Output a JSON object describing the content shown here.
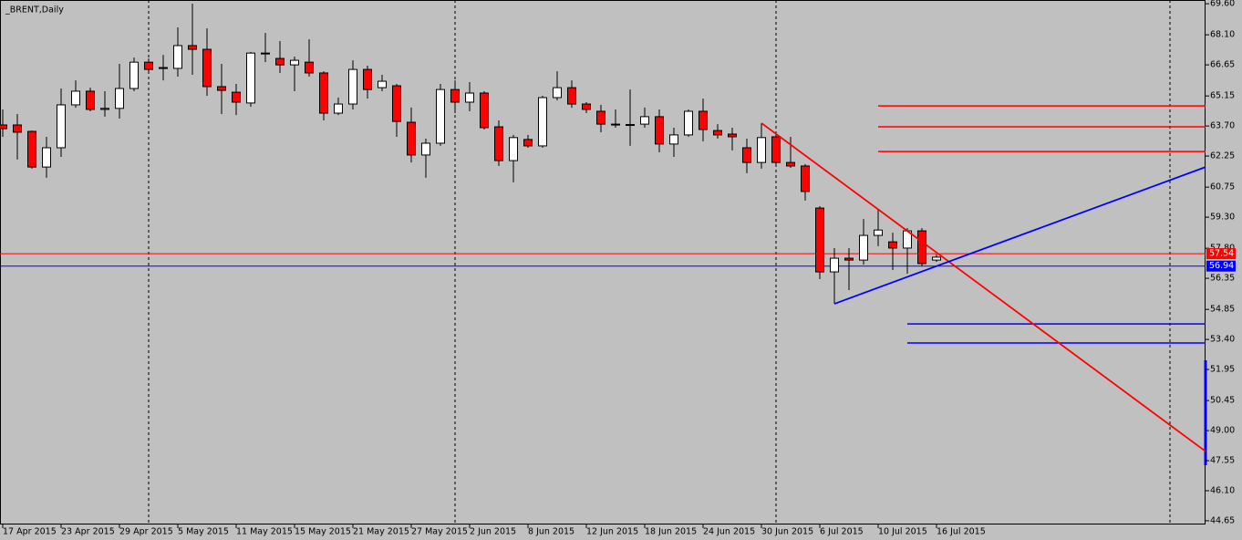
{
  "chart_data": {
    "type": "candlestick",
    "title": "_BRENT,Daily",
    "categories": [
      "17 Apr 2015",
      null,
      null,
      null,
      "23 Apr 2015",
      null,
      null,
      null,
      "29 Apr 2015",
      null,
      null,
      null,
      "5 May 2015",
      null,
      null,
      null,
      "11 May 2015",
      null,
      null,
      null,
      "15 May 2015",
      null,
      null,
      null,
      "21 May 2015",
      null,
      null,
      null,
      "27 May 2015",
      null,
      null,
      null,
      "2 Jun 2015",
      null,
      null,
      null,
      "8 Jun 2015",
      null,
      null,
      null,
      "12 Jun 2015",
      null,
      null,
      null,
      "18 Jun 2015",
      null,
      null,
      null,
      "24 Jun 2015",
      null,
      null,
      null,
      "30 Jun 2015",
      null,
      null,
      null,
      "6 Jul 2015",
      null,
      null,
      null,
      "10 Jul 2015",
      null,
      null,
      null,
      "16 Jul 2015"
    ],
    "open": [
      63.75,
      63.75,
      63.44,
      61.72,
      62.65,
      64.72,
      65.38,
      64.5,
      64.55,
      65.51,
      66.78,
      66.48,
      66.48,
      67.58,
      67.4,
      65.6,
      65.33,
      64.81,
      67.22,
      66.96,
      66.65,
      66.78,
      66.26,
      64.32,
      64.76,
      66.43,
      65.55,
      65.64,
      63.88,
      62.3,
      62.87,
      65.46,
      64.85,
      65.29,
      63.66,
      62.03,
      63.05,
      62.74,
      65.07,
      65.55,
      64.76,
      64.41,
      63.79,
      63.77,
      63.79,
      64.15,
      62.83,
      63.27,
      64.41,
      63.48,
      63.31,
      62.65,
      61.94,
      63.18,
      61.94,
      61.77,
      59.74,
      56.66,
      57.32,
      57.23,
      58.42,
      58.11,
      57.81,
      58.64,
      57.23
    ],
    "high": [
      64.5,
      64.28,
      63.48,
      63.18,
      65.51,
      65.9,
      65.55,
      65.38,
      66.7,
      67.0,
      66.96,
      67.13,
      68.46,
      69.6,
      68.41,
      66.7,
      65.73,
      67.27,
      68.19,
      67.8,
      67.05,
      67.88,
      66.34,
      65.07,
      66.87,
      66.61,
      66.17,
      65.73,
      64.59,
      63.09,
      65.73,
      65.9,
      65.82,
      65.38,
      63.97,
      63.27,
      63.27,
      65.16,
      66.34,
      65.9,
      64.85,
      64.72,
      64.5,
      65.46,
      64.59,
      64.5,
      63.62,
      64.5,
      65.02,
      63.79,
      63.62,
      63.09,
      63.84,
      63.4,
      63.18,
      61.86,
      59.83,
      57.81,
      57.81,
      59.21,
      59.65,
      58.55,
      58.77,
      58.77,
      57.5
    ],
    "low": [
      63.18,
      62.08,
      61.64,
      61.2,
      62.21,
      64.58,
      64.41,
      64.15,
      64.06,
      65.38,
      66.34,
      65.9,
      66.08,
      66.17,
      65.16,
      64.28,
      64.23,
      64.63,
      66.78,
      66.26,
      65.38,
      66.08,
      63.97,
      64.23,
      64.5,
      65.02,
      65.38,
      63.18,
      61.94,
      61.2,
      62.74,
      64.32,
      64.41,
      63.53,
      61.77,
      60.98,
      62.65,
      62.65,
      64.94,
      64.58,
      64.32,
      63.4,
      63.62,
      62.74,
      63.62,
      62.43,
      62.21,
      63.18,
      62.96,
      63.09,
      62.52,
      61.42,
      61.64,
      61.77,
      61.68,
      60.1,
      56.31,
      55.12,
      55.78,
      57.01,
      57.9,
      56.75,
      56.57,
      56.93,
      57.14
    ],
    "close": [
      63.57,
      63.4,
      61.72,
      62.65,
      64.72,
      65.38,
      64.5,
      64.55,
      65.51,
      66.78,
      66.43,
      66.52,
      67.58,
      67.4,
      65.6,
      65.42,
      64.85,
      67.22,
      67.2,
      66.65,
      66.87,
      66.26,
      64.32,
      64.76,
      66.43,
      65.46,
      65.86,
      63.92,
      62.3,
      62.87,
      65.46,
      64.85,
      65.29,
      63.62,
      62.03,
      63.14,
      62.74,
      65.07,
      65.55,
      64.76,
      64.5,
      63.79,
      63.75,
      63.75,
      64.15,
      62.83,
      63.27,
      64.41,
      63.53,
      63.27,
      63.18,
      61.94,
      63.14,
      61.94,
      61.77,
      60.54,
      56.66,
      57.32,
      57.23,
      58.42,
      58.68,
      57.81,
      58.64,
      57.06,
      57.37
    ],
    "up_color": "#ffffff",
    "down_color": "#ff0000",
    "ylim": [
      44.47,
      69.78
    ],
    "yticks": [
      {
        "value": 69.6,
        "label": "69.60"
      },
      {
        "value": 68.1,
        "label": "68.10"
      },
      66.65,
      65.15,
      {
        "value": 63.7,
        "label": "63.70"
      },
      62.25,
      60.75,
      {
        "value": 59.3,
        "label": "59.30"
      },
      {
        "value": 57.8,
        "label": "57.80"
      },
      56.35,
      54.85,
      {
        "value": 53.4,
        "label": "53.40"
      },
      51.95,
      50.45,
      {
        "value": 49,
        "label": "49.00"
      },
      47.55,
      {
        "value": 46.1,
        "label": "46.10"
      },
      44.65
    ],
    "price_lines": [
      {
        "value": 57.54,
        "color": "#ff0000"
      },
      {
        "value": 56.94,
        "color": "#0000ff"
      }
    ],
    "levels": [
      {
        "start": 60,
        "value": 64.67,
        "color": "#ff0000"
      },
      {
        "start": 60,
        "value": 63.66,
        "color": "#ff0000"
      },
      {
        "start": 60,
        "value": 62.47,
        "color": "#ff0000"
      },
      {
        "start": 62,
        "value": 54.15,
        "color": "#0000ff"
      },
      {
        "start": 62,
        "value": 53.23,
        "color": "#0000ff"
      }
    ],
    "trendlines": [
      {
        "x": [
          52,
          82.44
        ],
        "values": [
          63.84,
          48.0
        ],
        "color": "#ff0000"
      },
      {
        "x": [
          57,
          82.44
        ],
        "values": [
          55.12,
          61.72
        ],
        "color": "#0000ff"
      }
    ]
  }
}
